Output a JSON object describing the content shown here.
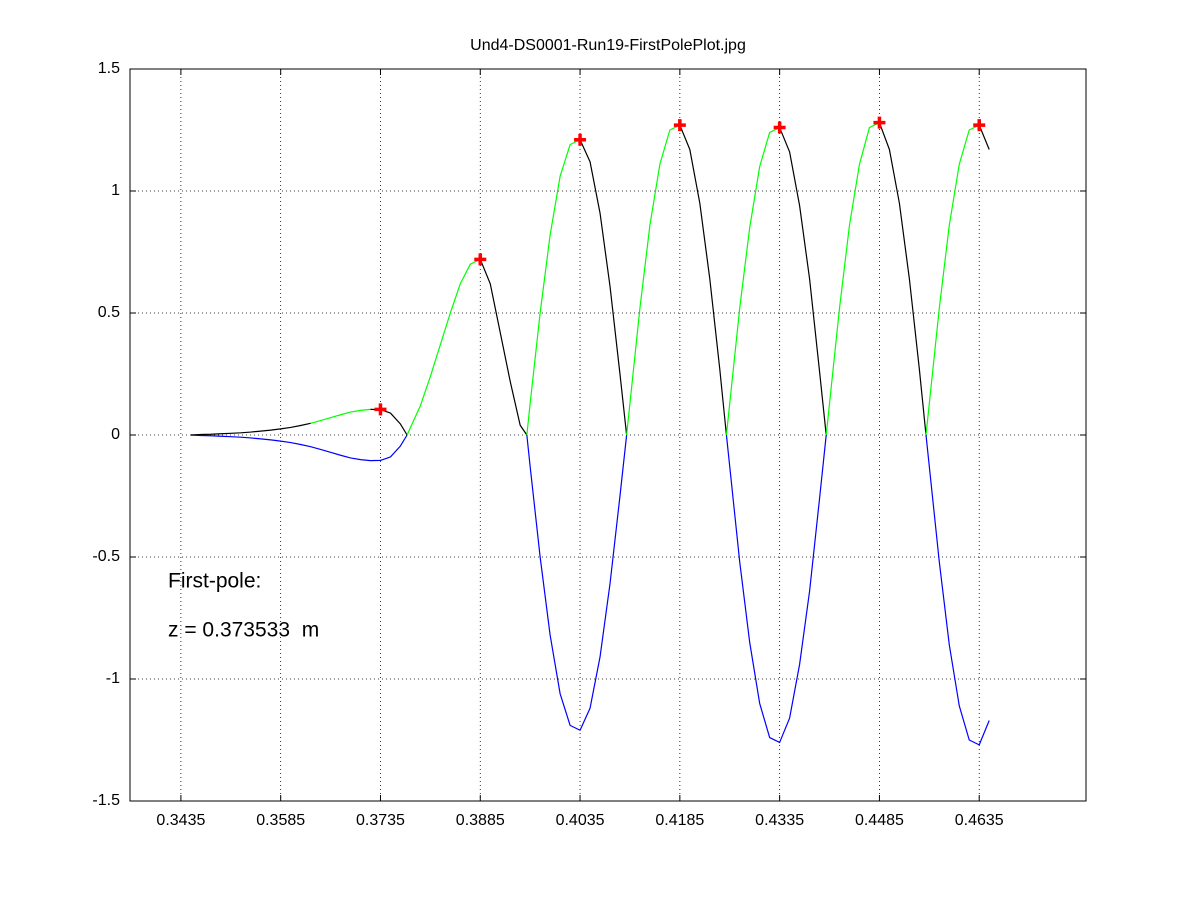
{
  "chart_data": {
    "type": "line",
    "title": "Und4-DS0001-Run19-FirstPolePlot.jpg",
    "annotations": [
      "First-pole:",
      "z = 0.373533  m"
    ],
    "xlim": [
      0.33585,
      0.47955
    ],
    "ylim": [
      -1.5,
      1.5
    ],
    "xticks": [
      0.3435,
      0.3585,
      0.3735,
      0.3885,
      0.4035,
      0.4185,
      0.4335,
      0.4485,
      0.4635
    ],
    "yticks": [
      -1.5,
      -1,
      -0.5,
      0,
      0.5,
      1,
      1.5
    ],
    "grid": true,
    "x": [
      0.345,
      0.3465,
      0.348,
      0.3495,
      0.351,
      0.3525,
      0.354,
      0.3555,
      0.357,
      0.3585,
      0.36,
      0.3615,
      0.363,
      0.3645,
      0.366,
      0.3675,
      0.369,
      0.3705,
      0.372,
      0.3735,
      0.375,
      0.3765,
      0.3775,
      0.378,
      0.3795,
      0.381,
      0.3825,
      0.384,
      0.3855,
      0.387,
      0.3885,
      0.39,
      0.3915,
      0.393,
      0.3945,
      0.3955,
      0.396,
      0.3975,
      0.399,
      0.4005,
      0.402,
      0.4035,
      0.405,
      0.4065,
      0.408,
      0.4095,
      0.4105,
      0.411,
      0.4125,
      0.414,
      0.4155,
      0.417,
      0.4185,
      0.42,
      0.4215,
      0.423,
      0.4245,
      0.4255,
      0.426,
      0.4275,
      0.429,
      0.4305,
      0.432,
      0.4335,
      0.435,
      0.4365,
      0.438,
      0.4395,
      0.4405,
      0.441,
      0.4425,
      0.444,
      0.4455,
      0.447,
      0.4485,
      0.45,
      0.4515,
      0.453,
      0.4545,
      0.4555,
      0.456,
      0.4575,
      0.459,
      0.4605,
      0.462,
      0.4635,
      0.465
    ],
    "series": [
      {
        "color": "#0000ff",
        "values": [
          0,
          -0.002,
          -0.003,
          -0.005,
          -0.007,
          -0.009,
          -0.012,
          -0.016,
          -0.02,
          -0.025,
          -0.031,
          -0.039,
          -0.048,
          -0.059,
          -0.071,
          -0.083,
          -0.094,
          -0.101,
          -0.105,
          -0.104,
          -0.09,
          -0.045,
          0,
          null,
          null,
          null,
          null,
          null,
          null,
          null,
          null,
          null,
          null,
          null,
          null,
          0,
          -0.13,
          -0.5,
          -0.82,
          -1.06,
          -1.19,
          -1.21,
          -1.12,
          -0.91,
          -0.61,
          -0.25,
          0,
          null,
          null,
          null,
          null,
          null,
          null,
          null,
          null,
          null,
          null,
          0,
          -0.13,
          -0.52,
          -0.85,
          -1.1,
          -1.24,
          -1.26,
          -1.16,
          -0.94,
          -0.64,
          -0.26,
          0,
          null,
          null,
          null,
          null,
          null,
          null,
          null,
          null,
          null,
          null,
          0,
          -0.13,
          -0.52,
          -0.86,
          -1.11,
          -1.25,
          -1.27,
          -1.17
        ]
      },
      {
        "color": "#000000",
        "values": [
          0,
          0.002,
          0.003,
          0.005,
          0.007,
          0.009,
          0.012,
          0.016,
          0.02,
          0.025,
          0.031,
          0.039,
          0.048,
          null,
          null,
          null,
          null,
          null,
          0.105,
          0.104,
          0.09,
          0.045,
          0,
          null,
          null,
          null,
          null,
          null,
          null,
          null,
          0.72,
          0.62,
          0.42,
          0.22,
          0.04,
          0,
          null,
          null,
          null,
          null,
          null,
          1.21,
          1.12,
          0.91,
          0.61,
          0.25,
          0,
          null,
          null,
          null,
          null,
          null,
          1.27,
          1.17,
          0.95,
          0.64,
          0.27,
          0,
          null,
          null,
          null,
          null,
          null,
          1.26,
          1.16,
          0.94,
          0.64,
          0.26,
          0,
          null,
          null,
          null,
          null,
          null,
          1.28,
          1.17,
          0.95,
          0.64,
          0.27,
          0,
          null,
          null,
          null,
          null,
          null,
          1.27,
          1.17
        ]
      },
      {
        "color": "#00ff00",
        "values": [
          null,
          null,
          null,
          null,
          null,
          null,
          null,
          null,
          null,
          null,
          null,
          null,
          0.048,
          0.059,
          0.071,
          0.083,
          0.094,
          0.101,
          0.105,
          null,
          null,
          null,
          0,
          0.03,
          0.12,
          0.24,
          0.37,
          0.5,
          0.62,
          0.7,
          0.72,
          null,
          null,
          null,
          null,
          0,
          0.13,
          0.5,
          0.82,
          1.06,
          1.19,
          1.21,
          null,
          null,
          null,
          null,
          0,
          0.13,
          0.52,
          0.86,
          1.11,
          1.25,
          1.27,
          null,
          null,
          null,
          null,
          0,
          0.13,
          0.52,
          0.85,
          1.1,
          1.24,
          1.26,
          null,
          null,
          null,
          null,
          0,
          0.13,
          0.52,
          0.86,
          1.11,
          1.26,
          1.28,
          null,
          null,
          null,
          null,
          0,
          0.13,
          0.52,
          0.86,
          1.11,
          1.25,
          1.27,
          null
        ]
      }
    ],
    "markers": {
      "color": "#ff0000",
      "x": [
        0.3735,
        0.3885,
        0.4035,
        0.4185,
        0.4335,
        0.4485,
        0.4635
      ],
      "values": [
        0.105,
        0.72,
        1.21,
        1.27,
        1.26,
        1.28,
        1.27
      ]
    }
  }
}
